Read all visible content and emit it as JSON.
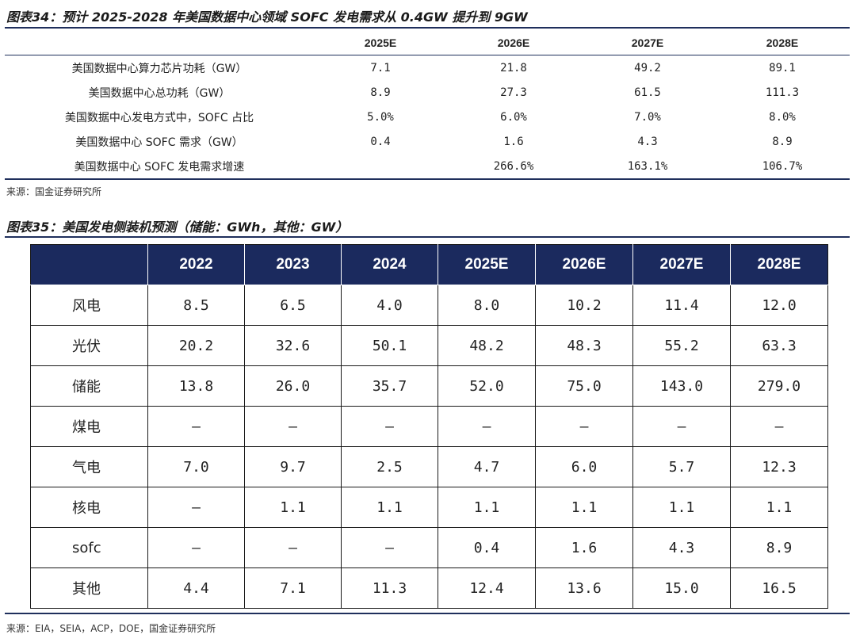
{
  "fig34": {
    "title": "图表34：预计 2025-2028 年美国数据中心领域 SOFC 发电需求从 0.4GW 提升到 9GW",
    "columns": [
      "",
      "2025E",
      "2026E",
      "2027E",
      "2028E"
    ],
    "rows": [
      [
        "美国数据中心算力芯片功耗（GW）",
        "7.1",
        "21.8",
        "49.2",
        "89.1"
      ],
      [
        "美国数据中心总功耗（GW）",
        "8.9",
        "27.3",
        "61.5",
        "111.3"
      ],
      [
        "美国数据中心发电方式中，SOFC 占比",
        "5.0%",
        "6.0%",
        "7.0%",
        "8.0%"
      ],
      [
        "美国数据中心 SOFC 需求（GW）",
        "0.4",
        "1.6",
        "4.3",
        "8.9"
      ],
      [
        "美国数据中心 SOFC 发电需求增速",
        "",
        "266.6%",
        "163.1%",
        "106.7%"
      ]
    ],
    "source": "来源：国金证券研究所"
  },
  "fig35": {
    "title": "图表35：美国发电侧装机预测（储能：GWh，其他：GW）",
    "columns": [
      "",
      "2022",
      "2023",
      "2024",
      "2025E",
      "2026E",
      "2027E",
      "2028E"
    ],
    "rows": [
      [
        "风电",
        "8.5",
        "6.5",
        "4.0",
        "8.0",
        "10.2",
        "11.4",
        "12.0"
      ],
      [
        "光伏",
        "20.2",
        "32.6",
        "50.1",
        "48.2",
        "48.3",
        "55.2",
        "63.3"
      ],
      [
        "储能",
        "13.8",
        "26.0",
        "35.7",
        "52.0",
        "75.0",
        "143.0",
        "279.0"
      ],
      [
        "煤电",
        "–",
        "–",
        "–",
        "–",
        "–",
        "–",
        "–"
      ],
      [
        "气电",
        "7.0",
        "9.7",
        "2.5",
        "4.7",
        "6.0",
        "5.7",
        "12.3"
      ],
      [
        "核电",
        "–",
        "1.1",
        "1.1",
        "1.1",
        "1.1",
        "1.1",
        "1.1"
      ],
      [
        "sofc",
        "–",
        "–",
        "–",
        "0.4",
        "1.6",
        "4.3",
        "8.9"
      ],
      [
        "其他",
        "4.4",
        "7.1",
        "11.3",
        "12.4",
        "13.6",
        "15.0",
        "16.5"
      ]
    ],
    "source": "来源：EIA，SEIA，ACP，DOE，国金证券研究所"
  },
  "colors": {
    "header_fill": "#1b2a5e",
    "rule": "#1f2f5c"
  }
}
